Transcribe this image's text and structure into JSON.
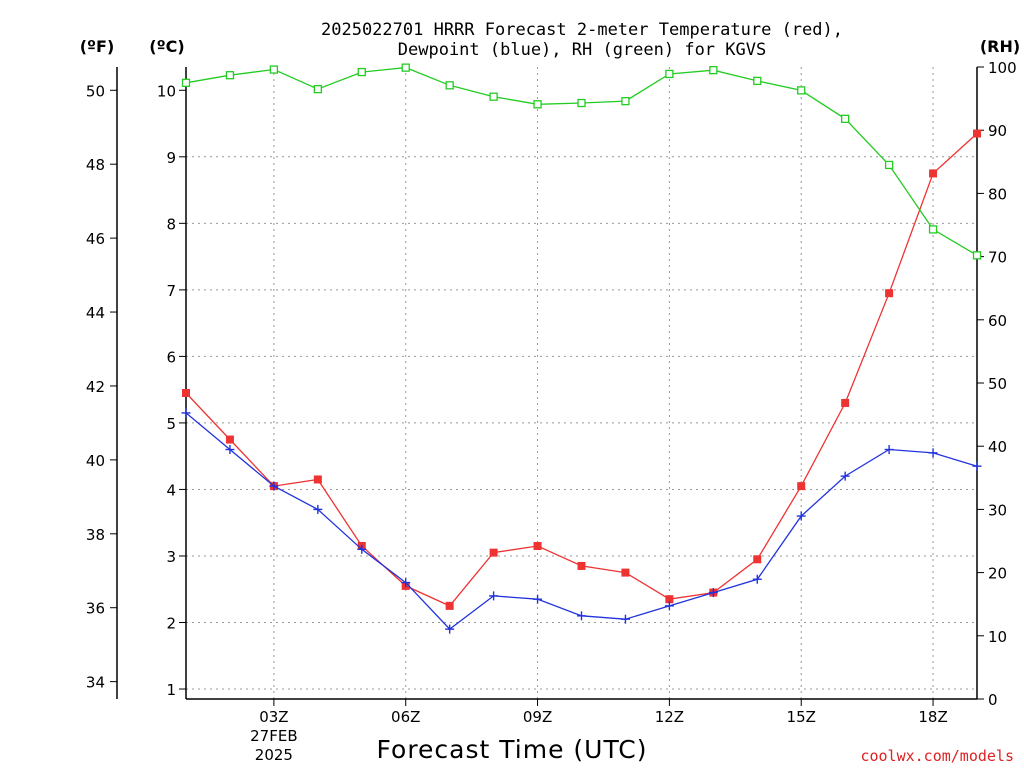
{
  "chart_data": {
    "type": "line",
    "title_line1": "2025022701 HRRR Forecast 2-meter Temperature (red),",
    "title_line2": "Dewpoint (blue), RH (green) for KGVS",
    "xlabel": "Forecast Time (UTC)",
    "units": {
      "far": "(ºF)",
      "cel": "(ºC)",
      "rh": "(RH)"
    },
    "x_hours": [
      1,
      2,
      3,
      4,
      5,
      6,
      7,
      8,
      9,
      10,
      11,
      12,
      13,
      14,
      15,
      16,
      17,
      18,
      19
    ],
    "xlim": [
      1,
      19
    ],
    "x_ticks": [
      {
        "hour": 3,
        "label": "03Z",
        "sub1": "27FEB",
        "sub2": "2025"
      },
      {
        "hour": 6,
        "label": "06Z",
        "sub1": "",
        "sub2": ""
      },
      {
        "hour": 9,
        "label": "09Z",
        "sub1": "",
        "sub2": ""
      },
      {
        "hour": 12,
        "label": "12Z",
        "sub1": "",
        "sub2": ""
      },
      {
        "hour": 15,
        "label": "15Z",
        "sub1": "",
        "sub2": ""
      },
      {
        "hour": 18,
        "label": "18Z",
        "sub1": "",
        "sub2": ""
      }
    ],
    "celsius_axis": {
      "min": 0.85,
      "max": 10.35,
      "ticks": [
        1,
        2,
        3,
        4,
        5,
        6,
        7,
        8,
        9,
        10
      ]
    },
    "fahrenheit_ticks": [
      34,
      36,
      38,
      40,
      42,
      44,
      46,
      48,
      50
    ],
    "rh_axis": {
      "min": 0,
      "max": 100,
      "ticks": [
        0,
        10,
        20,
        30,
        40,
        50,
        60,
        70,
        80,
        90,
        100
      ]
    },
    "grid": true,
    "series": [
      {
        "key": "temperature",
        "color": "#ee3333",
        "marker": "filled-square",
        "axis": "celsius",
        "values": [
          5.45,
          4.75,
          4.05,
          4.15,
          3.15,
          2.55,
          2.25,
          3.05,
          3.15,
          2.85,
          2.75,
          2.35,
          2.45,
          2.95,
          4.05,
          5.3,
          6.95,
          8.75,
          9.35
        ]
      },
      {
        "key": "dewpoint",
        "color": "#2233dd",
        "marker": "plus",
        "axis": "celsius",
        "values": [
          5.15,
          4.6,
          4.05,
          3.7,
          3.1,
          2.6,
          1.9,
          2.4,
          2.35,
          2.1,
          2.05,
          2.25,
          2.45,
          2.65,
          3.6,
          4.2,
          4.6,
          4.55,
          4.35
        ]
      },
      {
        "key": "relative_humidity",
        "color": "#22cc22",
        "marker": "open-square",
        "axis": "rh",
        "values": [
          97.5,
          98.7,
          99.6,
          96.5,
          99.2,
          99.9,
          97.1,
          95.3,
          94.1,
          94.3,
          94.6,
          98.9,
          99.5,
          97.8,
          96.3,
          91.8,
          84.5,
          74.3,
          70.2
        ]
      }
    ]
  },
  "footer": {
    "credit": "coolwx.com/models"
  }
}
